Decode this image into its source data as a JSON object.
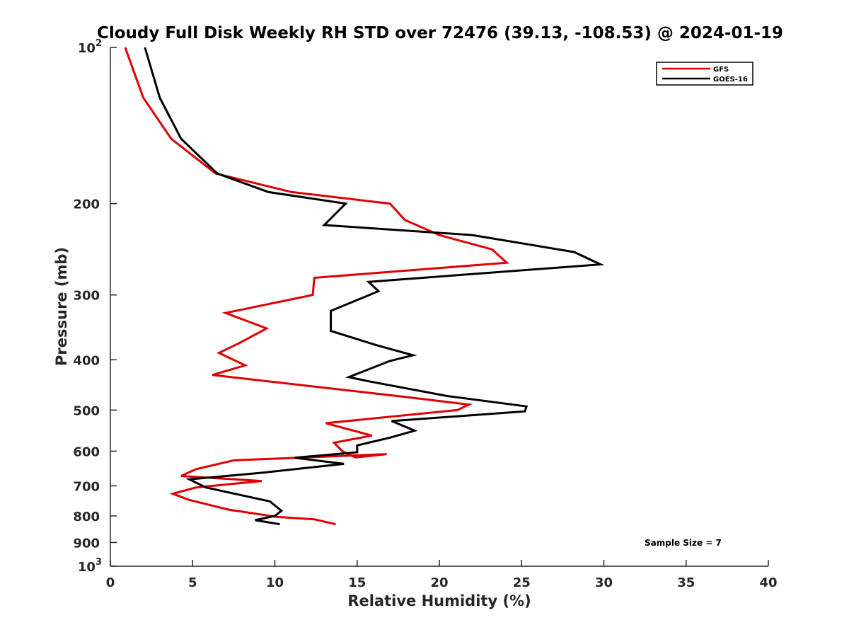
{
  "chart_data": {
    "type": "line",
    "title": "Cloudy Full Disk Weekly RH STD over 72476 (39.13, -108.53) @ 2024-01-19",
    "xlabel": "Relative Humidity (%)",
    "ylabel": "Pressure (mb)",
    "xlim": [
      0,
      40
    ],
    "ylim": [
      100,
      1000
    ],
    "yscale": "log",
    "y_reversed": true,
    "x_ticks": [
      "0",
      "5",
      "10",
      "15",
      "20",
      "25",
      "30",
      "35",
      "40"
    ],
    "y_ticks": [
      {
        "value": 100,
        "base": "10",
        "exp": "2"
      },
      {
        "value": 200,
        "label": "200"
      },
      {
        "value": 300,
        "label": "300"
      },
      {
        "value": 400,
        "label": "400"
      },
      {
        "value": 500,
        "label": "500"
      },
      {
        "value": 600,
        "label": "600"
      },
      {
        "value": 700,
        "label": "700"
      },
      {
        "value": 800,
        "label": "800"
      },
      {
        "value": 900,
        "label": "900"
      },
      {
        "value": 1000,
        "base": "10",
        "exp": "3"
      }
    ],
    "legend_position": "top-right",
    "grid": false,
    "series": [
      {
        "name": "GFS",
        "color": "#e00000",
        "points": [
          [
            0.9,
            100
          ],
          [
            2.0,
            125
          ],
          [
            3.7,
            150
          ],
          [
            6.4,
            175
          ],
          [
            11.0,
            190
          ],
          [
            17.0,
            200
          ],
          [
            17.9,
            215
          ],
          [
            20.0,
            230
          ],
          [
            23.2,
            245
          ],
          [
            24.1,
            260
          ],
          [
            12.4,
            278
          ],
          [
            12.3,
            300
          ],
          [
            7.0,
            325
          ],
          [
            9.5,
            348
          ],
          [
            7.8,
            372
          ],
          [
            6.6,
            388
          ],
          [
            8.2,
            410
          ],
          [
            6.2,
            428
          ],
          [
            18.0,
            472
          ],
          [
            21.8,
            488
          ],
          [
            21.1,
            500
          ],
          [
            13.1,
            530
          ],
          [
            15.9,
            560
          ],
          [
            13.6,
            578
          ],
          [
            14.1,
            600
          ],
          [
            14.9,
            617
          ],
          [
            16.8,
            608
          ],
          [
            7.5,
            625
          ],
          [
            5.2,
            650
          ],
          [
            4.3,
            670
          ],
          [
            9.2,
            685
          ],
          [
            5.2,
            705
          ],
          [
            3.8,
            725
          ],
          [
            4.8,
            745
          ],
          [
            7.2,
            778
          ],
          [
            10.1,
            803
          ],
          [
            12.4,
            812
          ],
          [
            13.7,
            830
          ]
        ]
      },
      {
        "name": "GOES-16",
        "color": "#000000",
        "points": [
          [
            2.1,
            100
          ],
          [
            3.0,
            125
          ],
          [
            4.3,
            150
          ],
          [
            6.5,
            175
          ],
          [
            9.6,
            190
          ],
          [
            14.3,
            200
          ],
          [
            13.0,
            220
          ],
          [
            22.0,
            230
          ],
          [
            28.2,
            248
          ],
          [
            29.8,
            262
          ],
          [
            15.7,
            283
          ],
          [
            16.3,
            295
          ],
          [
            13.4,
            322
          ],
          [
            13.4,
            352
          ],
          [
            16.2,
            375
          ],
          [
            18.4,
            392
          ],
          [
            17.0,
            402
          ],
          [
            14.5,
            432
          ],
          [
            15.7,
            440
          ],
          [
            20.5,
            470
          ],
          [
            25.3,
            492
          ],
          [
            25.2,
            503
          ],
          [
            17.1,
            525
          ],
          [
            18.5,
            548
          ],
          [
            17.0,
            565
          ],
          [
            15.0,
            585
          ],
          [
            15.0,
            603
          ],
          [
            11.2,
            618
          ],
          [
            14.2,
            635
          ],
          [
            9.3,
            660
          ],
          [
            4.8,
            680
          ],
          [
            5.8,
            705
          ],
          [
            9.7,
            750
          ],
          [
            10.4,
            782
          ],
          [
            10.0,
            800
          ],
          [
            8.8,
            815
          ],
          [
            10.3,
            830
          ]
        ]
      }
    ],
    "annotations": [
      "Sample Size = 7"
    ]
  }
}
